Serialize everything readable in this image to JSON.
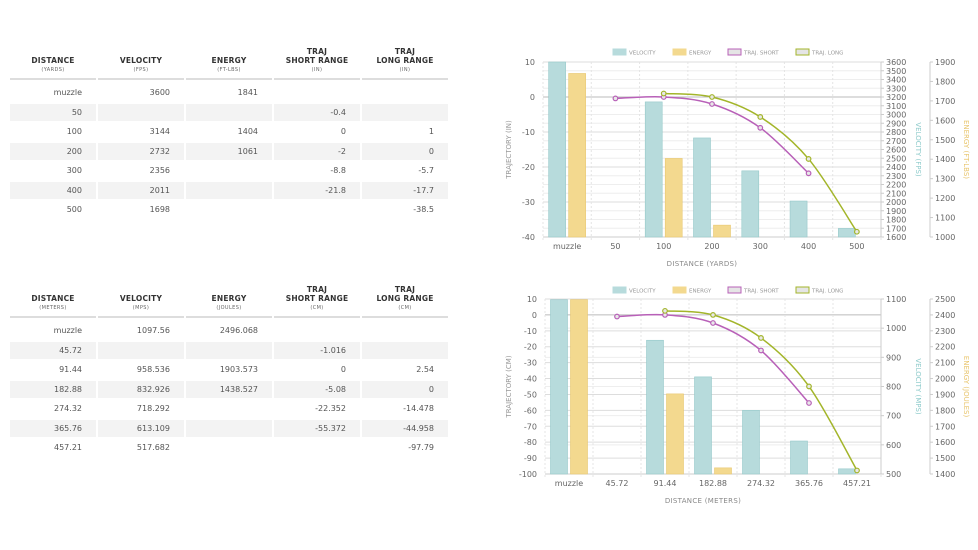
{
  "tables": [
    {
      "headers": [
        {
          "title": "DISTANCE",
          "unit": "(YARDS)"
        },
        {
          "title": "VELOCITY",
          "unit": "(FPS)"
        },
        {
          "title": "ENERGY",
          "unit": "(FT-LBS)"
        },
        {
          "title": "TRAJ\nSHORT RANGE",
          "unit": "(IN)"
        },
        {
          "title": "TRAJ\nLONG RANGE",
          "unit": "(IN)"
        }
      ],
      "rows": [
        [
          "muzzle",
          "3600",
          "1841",
          "",
          ""
        ],
        [
          "50",
          "",
          "",
          "-0.4",
          ""
        ],
        [
          "100",
          "3144",
          "1404",
          "0",
          "1"
        ],
        [
          "200",
          "2732",
          "1061",
          "-2",
          "0"
        ],
        [
          "300",
          "2356",
          "",
          "-8.8",
          "-5.7"
        ],
        [
          "400",
          "2011",
          "",
          "-21.8",
          "-17.7"
        ],
        [
          "500",
          "1698",
          "",
          "",
          "-38.5"
        ]
      ]
    },
    {
      "headers": [
        {
          "title": "DISTANCE",
          "unit": "(METERS)"
        },
        {
          "title": "VELOCITY",
          "unit": "(MPS)"
        },
        {
          "title": "ENERGY",
          "unit": "(JOULES)"
        },
        {
          "title": "TRAJ\nSHORT RANGE",
          "unit": "(CM)"
        },
        {
          "title": "TRAJ\nLONG RANGE",
          "unit": "(CM)"
        }
      ],
      "rows": [
        [
          "muzzle",
          "1097.56",
          "2496.068",
          "",
          ""
        ],
        [
          "45.72",
          "",
          "",
          "-1.016",
          ""
        ],
        [
          "91.44",
          "958.536",
          "1903.573",
          "0",
          "2.54"
        ],
        [
          "182.88",
          "832.926",
          "1438.527",
          "-5.08",
          "0"
        ],
        [
          "274.32",
          "718.292",
          "",
          "-22.352",
          "-14.478"
        ],
        [
          "365.76",
          "613.109",
          "",
          "-55.372",
          "-44.958"
        ],
        [
          "457.21",
          "517.682",
          "",
          "",
          "-97.79"
        ]
      ]
    }
  ],
  "colors": {
    "velocity": "#b7dbdc",
    "velocity_stroke": "#96c9ca",
    "energy": "#f3d98f",
    "energy_stroke": "#e8c770",
    "traj_short": "#b860b8",
    "traj_long": "#a3b52a",
    "axis_text": "#666"
  },
  "chart_data": [
    {
      "type": "bar+line",
      "legend": [
        "VELOCITY",
        "ENERGY",
        "TRAJ. SHORT",
        "TRAJ. LONG"
      ],
      "legend_position": "top",
      "categories": [
        "muzzle",
        "50",
        "100",
        "200",
        "300",
        "400",
        "500"
      ],
      "xlabel": "DISTANCE (YARDS)",
      "ylabel": "TRAJECTORY (IN)",
      "y2label": "VELOCITY (FPS)",
      "y3label": "ENERGY (FT-LBS)",
      "ylim": [
        -40,
        10
      ],
      "yticks": [
        10,
        0,
        -10,
        -20,
        -30,
        -40
      ],
      "y2lim": [
        1600,
        3600
      ],
      "y2ticks": [
        3600,
        3500,
        3400,
        3300,
        3200,
        3100,
        3000,
        2900,
        2800,
        2700,
        2600,
        2500,
        2400,
        2300,
        2200,
        2100,
        2000,
        1900,
        1800,
        1700,
        1600
      ],
      "y3lim": [
        1000,
        1900
      ],
      "y3ticks": [
        1900,
        1800,
        1700,
        1600,
        1500,
        1400,
        1300,
        1200,
        1100,
        1000
      ],
      "grid": true,
      "series": [
        {
          "name": "VELOCITY",
          "type": "bar",
          "axis": "y2",
          "values": [
            3600,
            null,
            3144,
            2732,
            2356,
            2011,
            1698
          ]
        },
        {
          "name": "ENERGY",
          "type": "bar",
          "axis": "y3",
          "values": [
            1841,
            null,
            1404,
            1061,
            null,
            null,
            null
          ]
        },
        {
          "name": "TRAJ. SHORT",
          "type": "line",
          "axis": "y",
          "values": [
            null,
            -0.4,
            0,
            -2,
            -8.8,
            -21.8,
            null
          ]
        },
        {
          "name": "TRAJ. LONG",
          "type": "line",
          "axis": "y",
          "values": [
            null,
            null,
            1,
            0,
            -5.7,
            -17.7,
            -38.5
          ]
        }
      ]
    },
    {
      "type": "bar+line",
      "legend": [
        "VELOCITY",
        "ENERGY",
        "TRAJ. SHORT",
        "TRAJ. LONG"
      ],
      "legend_position": "top",
      "categories": [
        "muzzle",
        "45.72",
        "91.44",
        "182.88",
        "274.32",
        "365.76",
        "457.21"
      ],
      "xlabel": "DISTANCE (METERS)",
      "ylabel": "TRAJECTORY (CM)",
      "y2label": "VELOCITY (MPS)",
      "y3label": "ENERGY (JOULES)",
      "ylim": [
        -100,
        10
      ],
      "yticks": [
        10,
        0,
        -10,
        -20,
        -30,
        -40,
        -50,
        -60,
        -70,
        -80,
        -90,
        -100
      ],
      "y2lim": [
        500,
        1100
      ],
      "y2ticks": [
        1100,
        1000,
        900,
        800,
        700,
        600,
        500
      ],
      "y3lim": [
        1400,
        2500
      ],
      "y3ticks": [
        2500,
        2400,
        2300,
        2200,
        2100,
        2000,
        1900,
        1800,
        1700,
        1600,
        1500,
        1400
      ],
      "grid": true,
      "series": [
        {
          "name": "VELOCITY",
          "type": "bar",
          "axis": "y2",
          "values": [
            1097.56,
            null,
            958.536,
            832.926,
            718.292,
            613.109,
            517.682
          ]
        },
        {
          "name": "ENERGY",
          "type": "bar",
          "axis": "y3",
          "values": [
            2496.068,
            null,
            1903.573,
            1438.527,
            null,
            null,
            null
          ]
        },
        {
          "name": "TRAJ. SHORT",
          "type": "line",
          "axis": "y",
          "values": [
            null,
            -1.016,
            0,
            -5.08,
            -22.352,
            -55.372,
            null
          ]
        },
        {
          "name": "TRAJ. LONG",
          "type": "line",
          "axis": "y",
          "values": [
            null,
            null,
            2.54,
            0,
            -14.478,
            -44.958,
            -97.79
          ]
        }
      ]
    }
  ]
}
